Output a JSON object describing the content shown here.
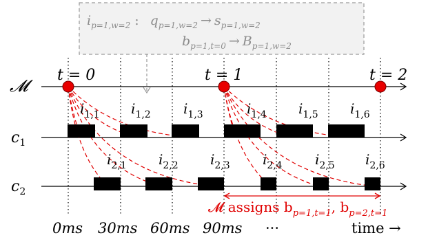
{
  "callout": {
    "line1_lhs": "i",
    "line1_lhs_sub": "p=1,w=2",
    "line1_colon": ":",
    "line1_a": "q",
    "line1_a_sub": "p=1,w=2",
    "line1_arrow": "→",
    "line1_b": "s",
    "line1_b_sub": "p=1,w=2",
    "line2_a": "b",
    "line2_a_sub": "p=1,t=0",
    "line2_arrow": "→",
    "line2_b": "B",
    "line2_b_sub": "p=1,w=2"
  },
  "rows": {
    "manager_label": "𝓜",
    "client1_label": "c",
    "client1_sub": "1",
    "client2_label": "c",
    "client2_sub": "2"
  },
  "ticks": [
    {
      "label": "t = 0"
    },
    {
      "label": "t = 1"
    },
    {
      "label": "t = 2"
    }
  ],
  "c1_items": [
    {
      "base": "i",
      "sub": "1,1"
    },
    {
      "base": "i",
      "sub": "1,2"
    },
    {
      "base": "i",
      "sub": "1,3"
    },
    {
      "base": "i",
      "sub": "1,4"
    },
    {
      "base": "i",
      "sub": "1,5"
    },
    {
      "base": "i",
      "sub": "1,6"
    }
  ],
  "c2_items": [
    {
      "base": "i",
      "sub": "2,1"
    },
    {
      "base": "i",
      "sub": "2,2"
    },
    {
      "base": "i",
      "sub": "2,3"
    },
    {
      "base": "i",
      "sub": "2,4"
    },
    {
      "base": "i",
      "sub": "2,5"
    },
    {
      "base": "i",
      "sub": "2,6"
    }
  ],
  "assign": {
    "prefix": "𝓜 assigns b",
    "sub1": "p=1,t=1",
    "sep": ", b",
    "sub2": "p=2,t=1"
  },
  "time_axis": {
    "t0": "0ms",
    "t1": "30ms",
    "t2": "60ms",
    "t3": "90ms",
    "ellipsis": "···",
    "label": "time →"
  },
  "colors": {
    "accent": "#e00000",
    "dot": "#e80000",
    "callout_border": "#9a9a9a",
    "callout_text": "#8c8c8c",
    "callout_fill": "#f2f2f2",
    "ink": "#000000"
  }
}
